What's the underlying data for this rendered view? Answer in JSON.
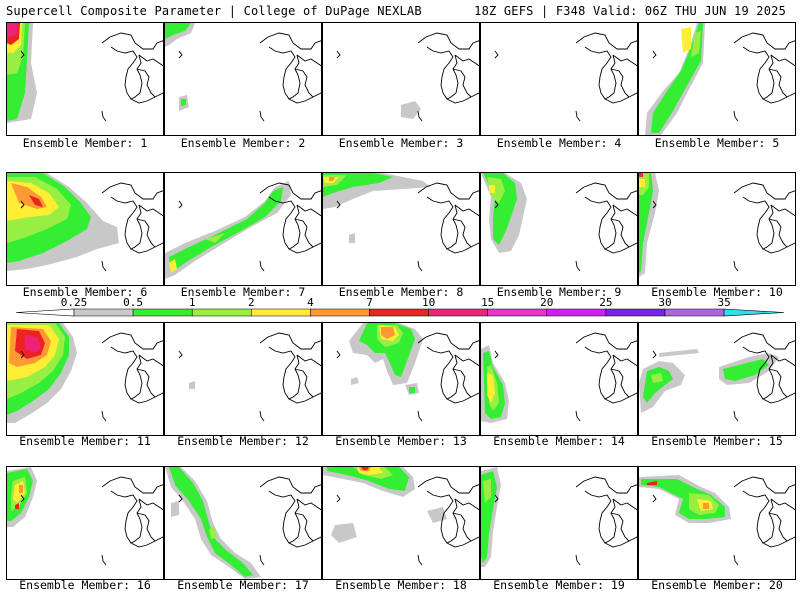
{
  "header": {
    "left": "Supercell Composite Parameter | College of DuPage NEXLAB",
    "right": "18Z GEFS | F348 Valid: 06Z THU JUN 19 2025"
  },
  "scale": {
    "ticks": [
      "0.25",
      "0.5",
      "1",
      "2",
      "4",
      "7",
      "10",
      "15",
      "20",
      "25",
      "30",
      "35"
    ],
    "colors": [
      "#c8c8c8",
      "#33ee33",
      "#99ee44",
      "#ffee33",
      "#ff9933",
      "#ee2222",
      "#ee2277",
      "#ee33cc",
      "#cc22ee",
      "#7722ee",
      "#aa66dd",
      "#33ddee"
    ]
  },
  "members": [
    {
      "label": "Ensemble Member: 1",
      "n": 1
    },
    {
      "label": "Ensemble Member: 2",
      "n": 2
    },
    {
      "label": "Ensemble Member: 3",
      "n": 3
    },
    {
      "label": "Ensemble Member: 4",
      "n": 4
    },
    {
      "label": "Ensemble Member: 5",
      "n": 5
    },
    {
      "label": "Ensemble Member: 6",
      "n": 6
    },
    {
      "label": "Ensemble Member: 7",
      "n": 7
    },
    {
      "label": "Ensemble Member: 8",
      "n": 8
    },
    {
      "label": "Ensemble Member: 9",
      "n": 9
    },
    {
      "label": "Ensemble Member: 10",
      "n": 10
    },
    {
      "label": "Ensemble Member: 11",
      "n": 11
    },
    {
      "label": "Ensemble Member: 12",
      "n": 12
    },
    {
      "label": "Ensemble Member: 13",
      "n": 13
    },
    {
      "label": "Ensemble Member: 14",
      "n": 14
    },
    {
      "label": "Ensemble Member: 15",
      "n": 15
    },
    {
      "label": "Ensemble Member: 16",
      "n": 16
    },
    {
      "label": "Ensemble Member: 17",
      "n": 17
    },
    {
      "label": "Ensemble Member: 18",
      "n": 18
    },
    {
      "label": "Ensemble Member: 19",
      "n": 19
    },
    {
      "label": "Ensemble Member: 20",
      "n": 20
    }
  ]
}
